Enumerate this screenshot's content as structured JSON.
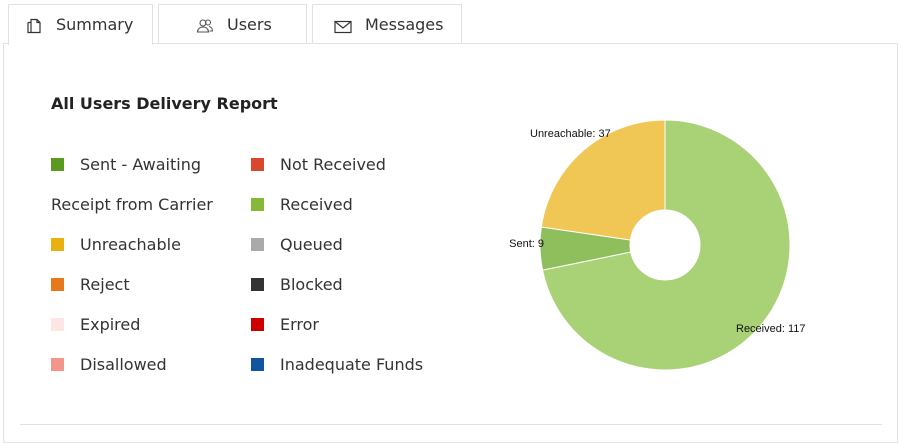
{
  "tabs": [
    {
      "label": "Summary"
    },
    {
      "label": "Users"
    },
    {
      "label": "Messages"
    }
  ],
  "chart_data": {
    "type": "donut",
    "title": "All Users Delivery Report",
    "categories": [
      "Received",
      "Sent",
      "Unreachable"
    ],
    "values": [
      117,
      9,
      37
    ],
    "value_labels": [
      "Received: 117",
      "Sent: 9",
      "Unreachable: 37"
    ],
    "colors": [
      "#a9d175",
      "#8fbe5c",
      "#f0c654"
    ],
    "legend": [
      {
        "name": "Sent - Awaiting Receipt from Carrier",
        "color": "#5b9a1f"
      },
      {
        "name": "Unreachable",
        "color": "#e9b012"
      },
      {
        "name": "Reject",
        "color": "#e8781c"
      },
      {
        "name": "Expired",
        "color": "#fde6e4"
      },
      {
        "name": "Disallowed",
        "color": "#f4958c"
      },
      {
        "name": "Not Received",
        "color": "#d9482a"
      },
      {
        "name": "Received",
        "color": "#86b83a"
      },
      {
        "name": "Queued",
        "color": "#aaaaaa"
      },
      {
        "name": "Blocked",
        "color": "#333333"
      },
      {
        "name": "Error",
        "color": "#cc0000"
      },
      {
        "name": "Inadequate Funds",
        "color": "#1155a1"
      }
    ]
  }
}
